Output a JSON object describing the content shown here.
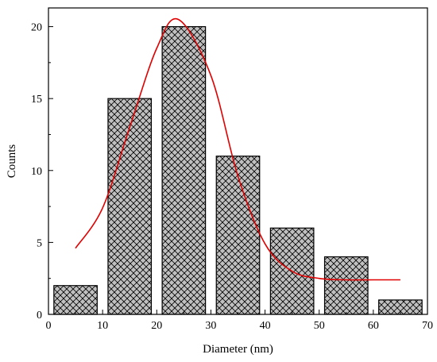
{
  "chart_data": {
    "type": "bar",
    "title": "",
    "xlabel": "Diameter (nm)",
    "ylabel": "Counts",
    "xlim": [
      0,
      70
    ],
    "ylim": [
      0,
      21.3
    ],
    "x_ticks": [
      0,
      10,
      20,
      30,
      40,
      50,
      60,
      70
    ],
    "y_ticks": [
      0,
      5,
      10,
      15,
      20
    ],
    "grid": false,
    "legend": "none",
    "series": [
      {
        "kind": "histogram",
        "bins": [
          {
            "x0": 1,
            "x1": 9,
            "value": 2
          },
          {
            "x0": 11,
            "x1": 19,
            "value": 15
          },
          {
            "x0": 21,
            "x1": 29,
            "value": 20
          },
          {
            "x0": 31,
            "x1": 39,
            "value": 11
          },
          {
            "x0": 41,
            "x1": 49,
            "value": 6
          },
          {
            "x0": 51,
            "x1": 59,
            "value": 4
          },
          {
            "x0": 61,
            "x1": 69,
            "value": 1
          }
        ],
        "fill": "#c0c0c0",
        "pattern": "crosshatch"
      },
      {
        "kind": "fit-curve",
        "model": "gaussian",
        "x": [
          5,
          10,
          15,
          20,
          24,
          30,
          35,
          40,
          45,
          50,
          55,
          60,
          65
        ],
        "y": [
          4.6,
          7.4,
          13.0,
          18.5,
          20.5,
          16.6,
          9.6,
          4.9,
          3.0,
          2.5,
          2.4,
          2.4,
          2.4
        ],
        "color": "#e00000"
      }
    ]
  }
}
